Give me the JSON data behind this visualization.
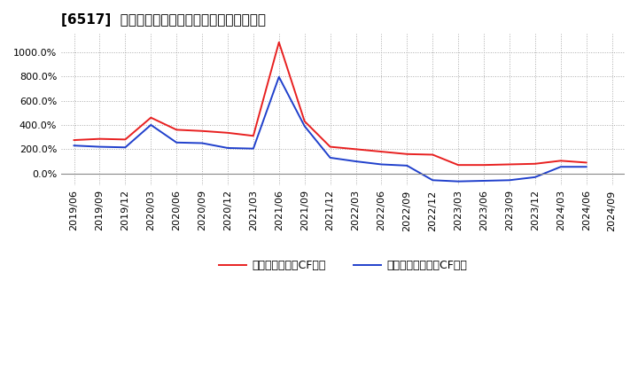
{
  "title": "[6517]  有利子負債キャッシュフロー比率の推移",
  "legend_red": "有利子負債営業CF比率",
  "legend_blue": "有利子負債フリーCF比率",
  "background_color": "#ffffff",
  "plot_bg_color": "#ffffff",
  "grid_color": "#aaaaaa",
  "ylim": [
    -100,
    1150
  ],
  "yticks": [
    0,
    200,
    400,
    600,
    800,
    1000
  ],
  "dates": [
    "2019/06",
    "2019/09",
    "2019/12",
    "2020/03",
    "2020/06",
    "2020/09",
    "2020/12",
    "2021/03",
    "2021/06",
    "2021/09",
    "2021/12",
    "2022/03",
    "2022/06",
    "2022/09",
    "2022/12",
    "2023/03",
    "2023/06",
    "2023/09",
    "2023/12",
    "2024/03",
    "2024/06",
    "2024/09"
  ],
  "red_values": [
    275,
    285,
    280,
    460,
    360,
    350,
    335,
    310,
    1080,
    430,
    220,
    200,
    180,
    160,
    155,
    70,
    70,
    75,
    80,
    105,
    90,
    null
  ],
  "blue_values": [
    230,
    220,
    215,
    400,
    255,
    250,
    210,
    205,
    795,
    390,
    130,
    100,
    75,
    65,
    -55,
    -65,
    -60,
    -55,
    -30,
    55,
    55,
    null
  ]
}
